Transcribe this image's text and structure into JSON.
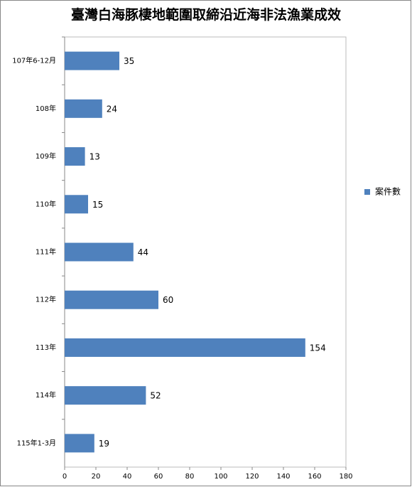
{
  "chart_data": {
    "type": "bar",
    "orientation": "horizontal",
    "title": "臺灣白海豚棲地範圍取締沿近海非法漁業成效",
    "categories": [
      "107年6-12月",
      "108年",
      "109年",
      "110年",
      "111年",
      "112年",
      "113年",
      "114年",
      "115年1-3月"
    ],
    "series": [
      {
        "name": "案件數",
        "color": "#4f81bd",
        "values": [
          35,
          24,
          13,
          15,
          44,
          60,
          154,
          52,
          19
        ]
      }
    ],
    "xlim": [
      0,
      180
    ],
    "xticks": [
      0,
      20,
      40,
      60,
      80,
      100,
      120,
      140,
      160,
      180
    ],
    "grid": false,
    "legend": "right"
  }
}
